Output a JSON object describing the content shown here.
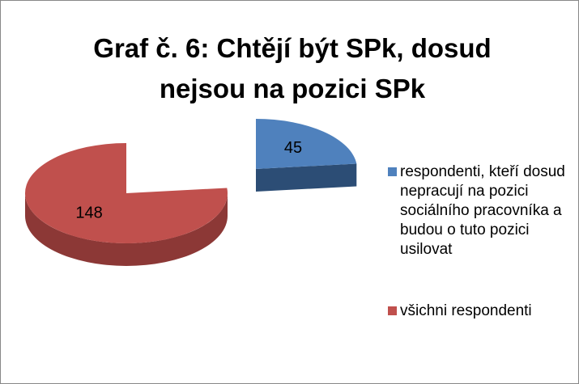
{
  "chart_data": {
    "type": "pie",
    "title": "Graf č. 6: Chtějí být SPk, dosud nejsou na pozici SPk",
    "categories": [
      "respondenti, kteří dosud nepracují na pozici sociálního pracovníka a budou o tuto pozici usilovat",
      "všichni respondenti"
    ],
    "values": [
      45,
      148
    ],
    "colors": [
      "#4f81bd",
      "#c0504d"
    ],
    "side_colors": [
      "#2c4d75",
      "#8c3836"
    ],
    "legend": "right"
  }
}
